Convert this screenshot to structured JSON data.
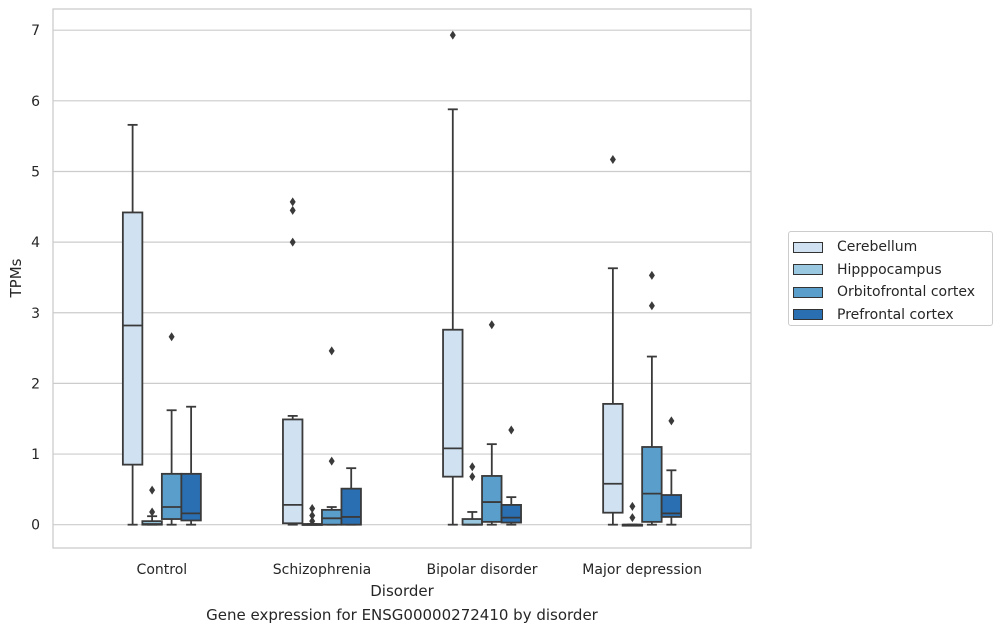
{
  "caption": "Gene expression for ENSG00000272410 by disorder",
  "chart_data": {
    "type": "box",
    "xlabel": "Disorder",
    "ylabel": "TPMs",
    "ylim": [
      -0.33,
      7.3
    ],
    "yticks": [
      0,
      1,
      2,
      3,
      4,
      5,
      6,
      7
    ],
    "grid": "horizontal",
    "legend_position": "right",
    "categories": [
      "Control",
      "Schizophrenia",
      "Bipolar disorder",
      "Major depression"
    ],
    "series": [
      {
        "name": "Cerebellum",
        "color": "#d0e1f2",
        "boxes": [
          {
            "low": 0.0,
            "q1": 0.85,
            "median": 2.82,
            "q3": 4.42,
            "high": 5.66,
            "outliers": []
          },
          {
            "low": 0.0,
            "q1": 0.02,
            "median": 0.28,
            "q3": 1.49,
            "high": 1.54,
            "outliers": [
              4.0,
              4.45,
              4.57
            ]
          },
          {
            "low": 0.0,
            "q1": 0.68,
            "median": 1.08,
            "q3": 2.76,
            "high": 5.88,
            "outliers": [
              6.93
            ]
          },
          {
            "low": 0.0,
            "q1": 0.17,
            "median": 0.58,
            "q3": 1.71,
            "high": 3.63,
            "outliers": [
              5.17
            ]
          }
        ]
      },
      {
        "name": "Hipppocampus",
        "color": "#9ac8e0",
        "boxes": [
          {
            "low": 0.0,
            "q1": 0.0,
            "median": 0.01,
            "q3": 0.05,
            "high": 0.12,
            "outliers": [
              0.18,
              0.49
            ]
          },
          {
            "low": 0.0,
            "q1": 0.0,
            "median": 0.0,
            "q3": 0.01,
            "high": 0.01,
            "outliers": [
              0.05,
              0.13,
              0.23
            ]
          },
          {
            "low": 0.0,
            "q1": 0.0,
            "median": 0.0,
            "q3": 0.08,
            "high": 0.18,
            "outliers": [
              0.68,
              0.82
            ]
          },
          {
            "low": 0.0,
            "q1": 0.0,
            "median": 0.0,
            "q3": 0.0,
            "high": 0.0,
            "outliers": [
              0.1,
              0.26
            ]
          }
        ]
      },
      {
        "name": "Orbitofrontal cortex",
        "color": "#5a9ecc",
        "boxes": [
          {
            "low": 0.0,
            "q1": 0.08,
            "median": 0.25,
            "q3": 0.72,
            "high": 1.62,
            "outliers": [
              2.66
            ]
          },
          {
            "low": 0.0,
            "q1": 0.0,
            "median": 0.09,
            "q3": 0.21,
            "high": 0.25,
            "outliers": [
              0.9,
              2.46
            ]
          },
          {
            "low": 0.0,
            "q1": 0.04,
            "median": 0.32,
            "q3": 0.69,
            "high": 1.14,
            "outliers": [
              2.83
            ]
          },
          {
            "low": 0.0,
            "q1": 0.04,
            "median": 0.44,
            "q3": 1.1,
            "high": 2.38,
            "outliers": [
              3.1,
              3.53
            ]
          }
        ]
      },
      {
        "name": "Prefrontal cortex",
        "color": "#2a6fb2",
        "boxes": [
          {
            "low": 0.0,
            "q1": 0.06,
            "median": 0.16,
            "q3": 0.72,
            "high": 1.67,
            "outliers": []
          },
          {
            "low": 0.0,
            "q1": 0.0,
            "median": 0.11,
            "q3": 0.51,
            "high": 0.8,
            "outliers": []
          },
          {
            "low": 0.0,
            "q1": 0.03,
            "median": 0.1,
            "q3": 0.28,
            "high": 0.39,
            "outliers": [
              1.34
            ]
          },
          {
            "low": 0.0,
            "q1": 0.11,
            "median": 0.16,
            "q3": 0.42,
            "high": 0.77,
            "outliers": [
              1.47
            ]
          }
        ]
      }
    ]
  }
}
